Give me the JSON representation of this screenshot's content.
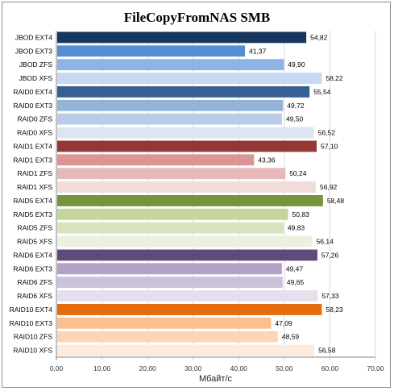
{
  "chart_data": {
    "type": "bar",
    "orientation": "horizontal",
    "title": "FileCopyFromNAS SMB",
    "xlabel": "Мбайт/с",
    "ylabel": "",
    "xlim": [
      0,
      70
    ],
    "xticks": [
      "0,00",
      "10,00",
      "20,00",
      "30,00",
      "40,00",
      "50,00",
      "60,00",
      "70,00"
    ],
    "grid": true,
    "legend": "none",
    "categories": [
      "JBOD EXT4",
      "JBOD EXT3",
      "JBOD ZFS",
      "JBOD XFS",
      "RAID0 EXT4",
      "RAID0 EXT3",
      "RAID0 ZFS",
      "RAID0 XFS",
      "RAID1 EXT4",
      "RAID1 EXT3",
      "RAID1 ZFS",
      "RAID1 XFS",
      "RAID5 EXT4",
      "RAID5 EXT3",
      "RAID5 ZFS",
      "RAID5 XFS",
      "RAID6 EXT4",
      "RAID6 EXT3",
      "RAID6 ZFS",
      "RAID6 XFS",
      "RAID10 EXT4",
      "RAID10 EXT3",
      "RAID10 ZFS",
      "RAID10 XFS"
    ],
    "values": [
      54.82,
      41.37,
      49.9,
      58.22,
      55.54,
      49.72,
      49.5,
      56.52,
      57.1,
      43.36,
      50.24,
      56.92,
      58.48,
      50.83,
      49.83,
      56.14,
      57.26,
      49.47,
      49.65,
      57.33,
      58.23,
      47.09,
      48.59,
      56.58
    ],
    "value_labels": [
      "54,82",
      "41,37",
      "49,90",
      "58,22",
      "55,54",
      "49,72",
      "49,50",
      "56,52",
      "57,10",
      "43,36",
      "50,24",
      "56,92",
      "58,48",
      "50,83",
      "49,83",
      "56,14",
      "57,26",
      "49,47",
      "49,65",
      "57,33",
      "58,23",
      "47,09",
      "48,59",
      "56,58"
    ],
    "colors": [
      "#17375e",
      "#558ed5",
      "#8eb4e3",
      "#c6d9f1",
      "#376092",
      "#95b3d7",
      "#b9cde5",
      "#dce6f2",
      "#953735",
      "#d99694",
      "#e6b9b8",
      "#f2dcdb",
      "#77933c",
      "#c3d69b",
      "#d7e4bd",
      "#ebf1de",
      "#604a7b",
      "#b3a2c7",
      "#ccc1da",
      "#e6e0ec",
      "#e46c0a",
      "#fac090",
      "#fcd5b5",
      "#fdeada"
    ]
  }
}
